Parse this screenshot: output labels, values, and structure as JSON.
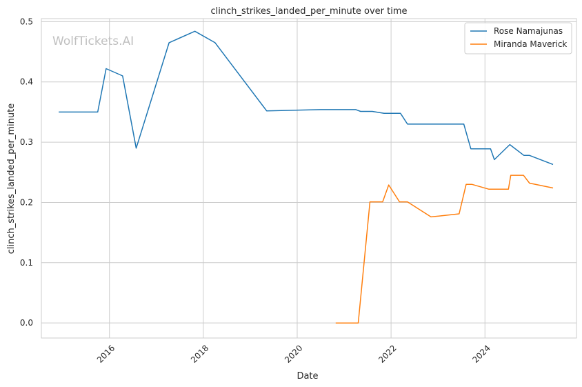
{
  "watermark": "WolfTickets.AI",
  "chart_data": {
    "type": "line",
    "title": "clinch_strikes_landed_per_minute over time",
    "xlabel": "Date",
    "ylabel": "clinch_strikes_landed_per_minute",
    "xlim": [
      2014.55,
      2025.95
    ],
    "ylim": [
      -0.025,
      0.505
    ],
    "x_ticks": [
      2016,
      2018,
      2020,
      2022,
      2024
    ],
    "y_ticks": [
      0.0,
      0.1,
      0.2,
      0.3,
      0.4,
      0.5
    ],
    "x_tick_labels": [
      "2016",
      "2018",
      "2020",
      "2022",
      "2024"
    ],
    "y_tick_labels": [
      "0.0",
      "0.1",
      "0.2",
      "0.3",
      "0.4",
      "0.5"
    ],
    "grid": true,
    "legend_position": "top-right",
    "series": [
      {
        "name": "Rose Namajunas",
        "color": "#1f77b4",
        "points": [
          [
            2014.92,
            0.35
          ],
          [
            2015.75,
            0.35
          ],
          [
            2015.93,
            0.422
          ],
          [
            2016.28,
            0.41
          ],
          [
            2016.57,
            0.29
          ],
          [
            2017.27,
            0.465
          ],
          [
            2017.82,
            0.484
          ],
          [
            2018.25,
            0.465
          ],
          [
            2019.35,
            0.352
          ],
          [
            2020.5,
            0.354
          ],
          [
            2021.25,
            0.354
          ],
          [
            2021.35,
            0.351
          ],
          [
            2021.6,
            0.351
          ],
          [
            2021.85,
            0.348
          ],
          [
            2022.2,
            0.348
          ],
          [
            2022.35,
            0.33
          ],
          [
            2023.55,
            0.33
          ],
          [
            2023.7,
            0.289
          ],
          [
            2024.12,
            0.289
          ],
          [
            2024.2,
            0.271
          ],
          [
            2024.53,
            0.296
          ],
          [
            2024.83,
            0.278
          ],
          [
            2024.95,
            0.278
          ],
          [
            2025.45,
            0.263
          ]
        ]
      },
      {
        "name": "Miranda Maverick",
        "color": "#ff7f0e",
        "points": [
          [
            2020.82,
            0.0
          ],
          [
            2021.3,
            0.0
          ],
          [
            2021.55,
            0.201
          ],
          [
            2021.82,
            0.201
          ],
          [
            2021.95,
            0.229
          ],
          [
            2022.18,
            0.201
          ],
          [
            2022.35,
            0.201
          ],
          [
            2022.85,
            0.176
          ],
          [
            2023.45,
            0.181
          ],
          [
            2023.6,
            0.23
          ],
          [
            2023.72,
            0.23
          ],
          [
            2024.08,
            0.222
          ],
          [
            2024.5,
            0.222
          ],
          [
            2024.55,
            0.245
          ],
          [
            2024.82,
            0.245
          ],
          [
            2024.95,
            0.232
          ],
          [
            2025.45,
            0.224
          ]
        ]
      }
    ]
  }
}
